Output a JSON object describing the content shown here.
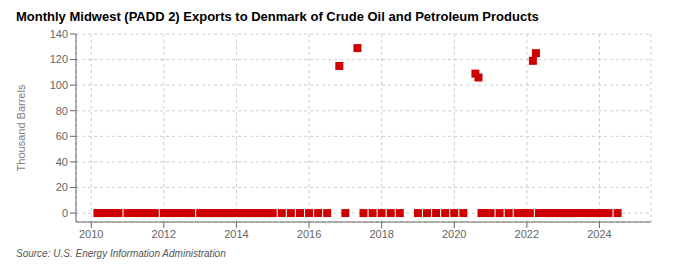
{
  "chart_data": {
    "type": "scatter",
    "title": "Monthly Midwest (PADD 2) Exports to Denmark of Crude Oil and Petroleum Products",
    "y_label": "Thousand Barrels",
    "annotations": [
      "Source: U.S. Energy Information Administration"
    ],
    "color": "#cc0000",
    "marker": "square",
    "grid": true,
    "xlim": [
      2009.58,
      2025.42
    ],
    "ylim": [
      -7,
      140
    ],
    "xticks": [
      2010,
      2012,
      2014,
      2016,
      2018,
      2020,
      2022,
      2024
    ],
    "yticks": [
      0,
      20,
      40,
      60,
      80,
      100,
      120,
      140
    ],
    "x": [
      2010.17,
      2010.25,
      2010.33,
      2010.5,
      2010.67,
      2010.75,
      2011.0,
      2011.17,
      2011.33,
      2011.5,
      2011.67,
      2011.75,
      2012.0,
      2012.17,
      2012.33,
      2012.5,
      2012.67,
      2012.75,
      2013.0,
      2013.083,
      2013.167,
      2013.25,
      2013.333,
      2013.417,
      2013.5,
      2013.583,
      2013.667,
      2013.75,
      2013.833,
      2013.917,
      2014.0,
      2014.083,
      2014.167,
      2014.25,
      2014.333,
      2014.417,
      2014.5,
      2014.583,
      2014.667,
      2014.75,
      2014.833,
      2014.917,
      2015.0,
      2015.25,
      2015.5,
      2015.75,
      2016.0,
      2016.25,
      2016.5,
      2016.833,
      2017.0,
      2017.333,
      2017.5,
      2017.75,
      2018.0,
      2018.25,
      2018.5,
      2019.0,
      2019.25,
      2019.5,
      2019.75,
      2020.0,
      2020.25,
      2020.583,
      2020.667,
      2020.75,
      2020.917,
      2021.0,
      2021.25,
      2021.5,
      2021.75,
      2021.917,
      2022.0,
      2022.083,
      2022.167,
      2022.25,
      2022.333,
      2022.5,
      2022.583,
      2022.75,
      2022.917,
      2023.0,
      2023.083,
      2023.167,
      2023.25,
      2023.333,
      2023.5,
      2023.667,
      2023.75,
      2023.917,
      2024.0,
      2024.083,
      2024.25,
      2024.5
    ],
    "values": [
      0,
      0,
      0,
      0,
      0,
      0,
      0,
      0,
      0,
      0,
      0,
      0,
      0,
      0,
      0,
      0,
      0,
      0,
      0,
      0,
      0,
      0,
      0,
      0,
      0,
      0,
      0,
      0,
      0,
      0,
      0,
      0,
      0,
      0,
      0,
      0,
      0,
      0,
      0,
      0,
      0,
      0,
      0,
      0,
      0,
      0,
      0,
      0,
      0,
      115,
      0,
      129,
      0,
      0,
      0,
      0,
      0,
      0,
      0,
      0,
      0,
      0,
      0,
      109,
      106,
      0,
      0,
      0,
      0,
      0,
      0,
      0,
      0,
      0,
      119,
      125,
      0,
      0,
      0,
      0,
      0,
      0,
      0,
      0,
      0,
      0,
      0,
      0,
      0,
      0,
      0,
      0,
      0,
      0
    ]
  }
}
